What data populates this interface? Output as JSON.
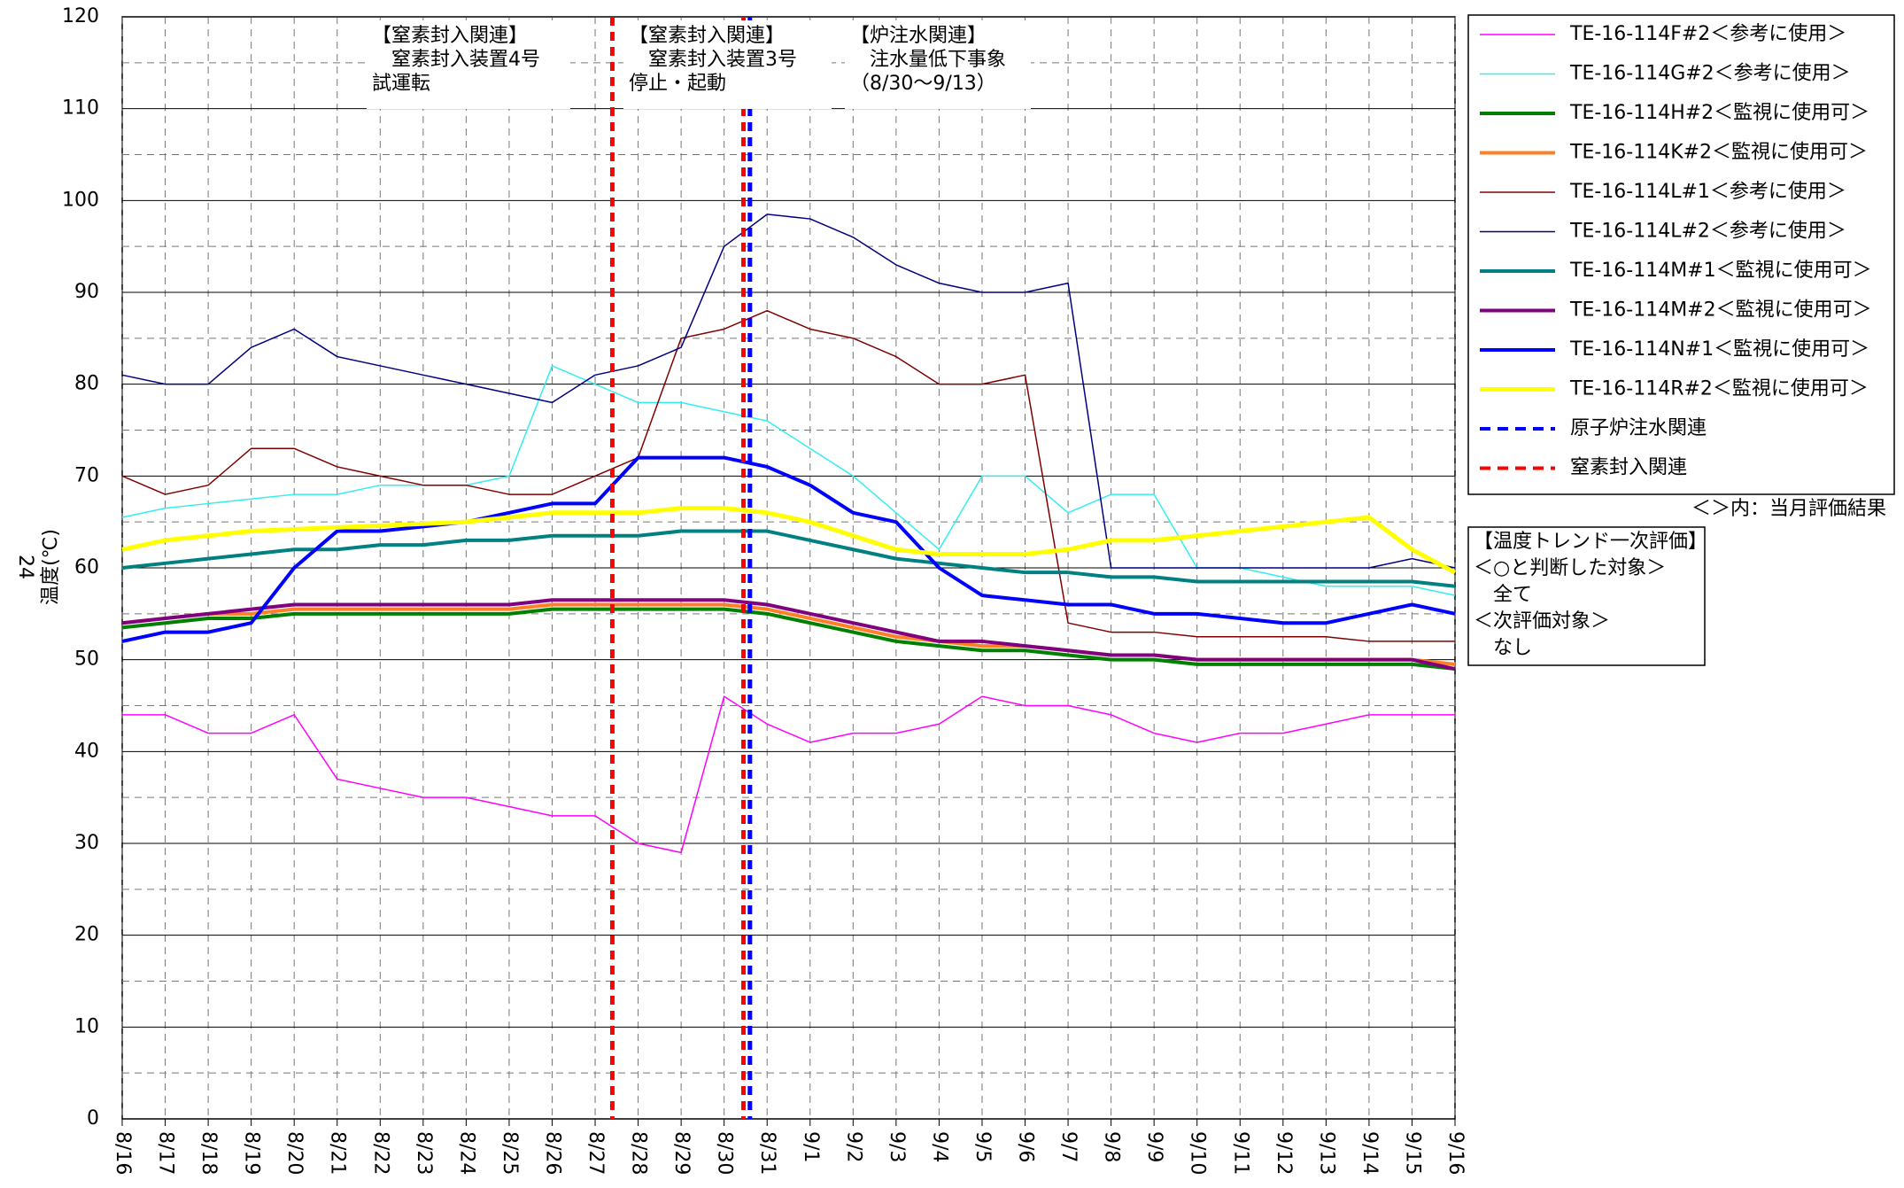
{
  "chart_data": {
    "type": "line",
    "ylabel": "温度(℃)",
    "page_number": "24",
    "xlim": [
      0,
      31
    ],
    "xticks": [
      {
        "value": 0,
        "label": "8/16"
      },
      {
        "value": 1,
        "label": "8/17"
      },
      {
        "value": 2,
        "label": "8/18"
      },
      {
        "value": 3,
        "label": "8/19"
      },
      {
        "value": 4,
        "label": "8/20"
      },
      {
        "value": 5,
        "label": "8/21"
      },
      {
        "value": 6,
        "label": "8/22"
      },
      {
        "value": 7,
        "label": "8/23"
      },
      {
        "value": 8,
        "label": "8/24"
      },
      {
        "value": 9,
        "label": "8/25"
      },
      {
        "value": 10,
        "label": "8/26"
      },
      {
        "value": 11,
        "label": "8/27"
      },
      {
        "value": 12,
        "label": "8/28"
      },
      {
        "value": 13,
        "label": "8/29"
      },
      {
        "value": 14,
        "label": "8/30"
      },
      {
        "value": 15,
        "label": "8/31"
      },
      {
        "value": 16,
        "label": "9/1"
      },
      {
        "value": 17,
        "label": "9/2"
      },
      {
        "value": 18,
        "label": "9/3"
      },
      {
        "value": 19,
        "label": "9/4"
      },
      {
        "value": 20,
        "label": "9/5"
      },
      {
        "value": 21,
        "label": "9/6"
      },
      {
        "value": 22,
        "label": "9/7"
      },
      {
        "value": 23,
        "label": "9/8"
      },
      {
        "value": 24,
        "label": "9/9"
      },
      {
        "value": 25,
        "label": "9/10"
      },
      {
        "value": 26,
        "label": "9/11"
      },
      {
        "value": 27,
        "label": "9/12"
      },
      {
        "value": 28,
        "label": "9/13"
      },
      {
        "value": 29,
        "label": "9/14"
      },
      {
        "value": 30,
        "label": "9/15"
      },
      {
        "value": 31,
        "label": "9/16"
      }
    ],
    "ylim": [
      0,
      120
    ],
    "yticks": [
      0,
      10,
      20,
      30,
      40,
      50,
      60,
      70,
      80,
      90,
      100,
      110,
      120
    ],
    "yminorticks": [
      5,
      15,
      25,
      35,
      45,
      55,
      65,
      75,
      85,
      95,
      105,
      115
    ],
    "grid": true,
    "x": [
      0,
      1,
      2,
      3,
      4,
      5,
      6,
      7,
      8,
      9,
      10,
      11,
      12,
      13,
      14,
      15,
      16,
      17,
      18,
      19,
      20,
      21,
      22,
      23,
      24,
      25,
      26,
      27,
      28,
      29,
      30,
      31
    ],
    "series": [
      {
        "name": "TE-16-114F#2＜参考に使用＞",
        "color": "#ff00ff",
        "width": 1.5,
        "values": [
          44,
          44,
          42,
          42,
          44,
          37,
          36,
          35,
          35,
          34,
          33,
          33,
          30,
          29,
          46,
          43,
          41,
          42,
          42,
          43,
          46,
          45,
          45,
          44,
          42,
          41,
          42,
          42,
          43,
          44,
          44,
          44
        ]
      },
      {
        "name": "TE-16-114G#2＜参考に使用＞",
        "color": "#33eeee",
        "width": 1.5,
        "values": [
          65.5,
          66.5,
          67,
          67.5,
          68,
          68,
          69,
          69,
          69,
          70,
          82,
          80,
          78,
          78,
          77,
          76,
          73,
          70,
          66,
          62,
          70,
          70,
          66,
          68,
          68,
          60,
          60,
          59,
          58,
          58,
          58,
          57
        ]
      },
      {
        "name": "TE-16-114H#2＜監視に使用可＞",
        "color": "#008000",
        "width": 4,
        "values": [
          53.5,
          54,
          54.5,
          54.5,
          55,
          55,
          55,
          55,
          55,
          55,
          55.5,
          55.5,
          55.5,
          55.5,
          55.5,
          55,
          54,
          53,
          52,
          51.5,
          51,
          51,
          50.5,
          50,
          50,
          49.5,
          49.5,
          49.5,
          49.5,
          49.5,
          49.5,
          49
        ]
      },
      {
        "name": "TE-16-114K#2＜監視に使用可＞",
        "color": "#ff7f27",
        "width": 4,
        "values": [
          54,
          54.5,
          55,
          55,
          55.5,
          55.5,
          55.5,
          55.5,
          55.5,
          55.5,
          56,
          56,
          56,
          56,
          56,
          55.5,
          54.5,
          53.5,
          52.5,
          52,
          51.5,
          51.5,
          51,
          50.5,
          50.5,
          50,
          50,
          50,
          50,
          50,
          50,
          49.5
        ]
      },
      {
        "name": "TE-16-114L#1＜参考に使用＞",
        "color": "#800000",
        "width": 1.5,
        "values": [
          70,
          68,
          69,
          73,
          73,
          71,
          70,
          69,
          69,
          68,
          68,
          70,
          72,
          85,
          86,
          88,
          86,
          85,
          83,
          80,
          80,
          81,
          54,
          53,
          53,
          52.5,
          52.5,
          52.5,
          52.5,
          52,
          52,
          52
        ]
      },
      {
        "name": "TE-16-114L#2＜参考に使用＞",
        "color": "#000080",
        "width": 1.5,
        "values": [
          81,
          80,
          80,
          84,
          86,
          83,
          82,
          81,
          80,
          79,
          78,
          81,
          82,
          84,
          95,
          98.5,
          98,
          96,
          93,
          91,
          90,
          90,
          91,
          60,
          60,
          60,
          60,
          60,
          60,
          60,
          61,
          60
        ]
      },
      {
        "name": "TE-16-114M#1＜監視に使用可＞",
        "color": "#008080",
        "width": 4,
        "values": [
          60,
          60.5,
          61,
          61.5,
          62,
          62,
          62.5,
          62.5,
          63,
          63,
          63.5,
          63.5,
          63.5,
          64,
          64,
          64,
          63,
          62,
          61,
          60.5,
          60,
          59.5,
          59.5,
          59,
          59,
          58.5,
          58.5,
          58.5,
          58.5,
          58.5,
          58.5,
          58
        ]
      },
      {
        "name": "TE-16-114M#2＜監視に使用可＞",
        "color": "#800080",
        "width": 4,
        "values": [
          54,
          54.5,
          55,
          55.5,
          56,
          56,
          56,
          56,
          56,
          56,
          56.5,
          56.5,
          56.5,
          56.5,
          56.5,
          56,
          55,
          54,
          53,
          52,
          52,
          51.5,
          51,
          50.5,
          50.5,
          50,
          50,
          50,
          50,
          50,
          50,
          49
        ]
      },
      {
        "name": "TE-16-114N#1＜監視に使用可＞",
        "color": "#0000ff",
        "width": 4,
        "values": [
          52,
          53,
          53,
          54,
          60,
          64,
          64,
          64.5,
          65,
          66,
          67,
          67,
          72,
          72,
          72,
          71,
          69,
          66,
          65,
          60,
          57,
          56.5,
          56,
          56,
          55,
          55,
          54.5,
          54,
          54,
          55,
          56,
          55
        ]
      },
      {
        "name": "TE-16-114R#2＜監視に使用可＞",
        "color": "#ffff00",
        "width": 5,
        "values": [
          62,
          63,
          63.5,
          64,
          64.2,
          64.4,
          64.6,
          64.8,
          65,
          65.5,
          66,
          66,
          66,
          66.5,
          66.5,
          66,
          65,
          63.5,
          62,
          61.5,
          61.5,
          61.5,
          62,
          63,
          63,
          63.5,
          64,
          64.5,
          65,
          65.5,
          62,
          59.5
        ]
      }
    ],
    "vline_groups": [
      {
        "name": "原子炉注水関連",
        "color": "#0000ff",
        "x": [
          14.6
        ]
      },
      {
        "name": "窒素封入関連",
        "color": "#ff0000",
        "x": [
          11.4,
          14.45
        ]
      }
    ],
    "annotations": [
      {
        "lines": [
          "【窒素封入関連】",
          "　窒素封入装置4号",
          "試運転"
        ]
      },
      {
        "lines": [
          "【窒素封入関連】",
          "　窒素封入装置3号",
          "停止・起動"
        ]
      },
      {
        "lines": [
          "【炉注水関連】",
          "　注水量低下事象",
          "（8/30～9/13）"
        ]
      }
    ],
    "legend_note": "＜＞内：当月評価結果",
    "evaluation": [
      "【温度トレンド一次評価】",
      "＜○と判断した対象＞",
      "　全て",
      "＜次評価対象＞",
      "　なし"
    ]
  }
}
